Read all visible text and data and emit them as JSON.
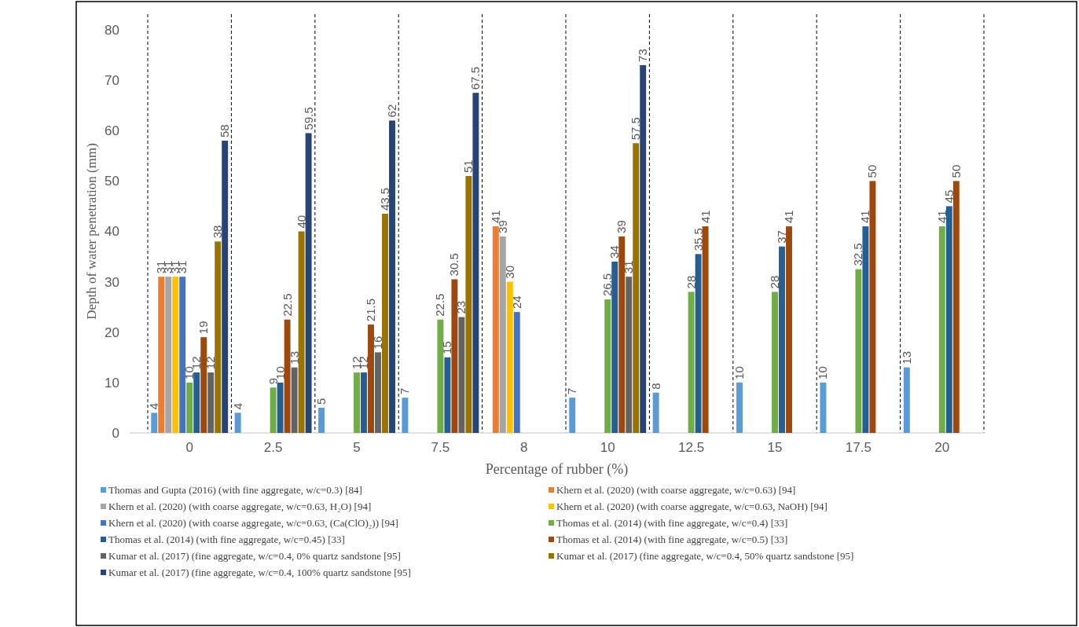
{
  "chart_data": {
    "type": "bar",
    "xlabel": "Percentage of rubber (%)",
    "ylabel": "Depth of water penetration (mm)",
    "categories": [
      "0",
      "2.5",
      "5",
      "7.5",
      "8",
      "10",
      "12.5",
      "15",
      "17.5",
      "20"
    ],
    "ylim": [
      0,
      80
    ],
    "yticks": [
      0,
      10,
      20,
      30,
      40,
      50,
      60,
      70,
      80
    ],
    "grid": "x",
    "legend": "bottom",
    "data_labels": true,
    "series": [
      {
        "name": "Thomas and Gupta (2016) (with fine aggregate, w/c=0.3) [84]",
        "color": "#5b9bd5",
        "values": [
          4,
          4,
          5,
          7,
          null,
          7,
          8,
          10,
          10,
          13
        ]
      },
      {
        "name": "Khern et al. (2020) (with coarse aggregate, w/c=0.63) [94]",
        "color": "#ed7d31",
        "values": [
          31,
          null,
          null,
          null,
          41,
          null,
          null,
          null,
          null,
          null
        ]
      },
      {
        "name": "Khern et al. (2020) (with coarse aggregate, w/c=0.63, H₂O) [94]",
        "color": "#a5a5a5",
        "values": [
          31,
          null,
          null,
          null,
          39,
          null,
          null,
          null,
          null,
          null
        ]
      },
      {
        "name": "Khern et al. (2020) (with coarse aggregate, w/c=0.63, NaOH) [94]",
        "color": "#ffc000",
        "values": [
          31,
          null,
          null,
          null,
          30,
          null,
          null,
          null,
          null,
          null
        ]
      },
      {
        "name": "Khern et al. (2020) (with coarse aggregate, w/c=0.63, (Ca(ClO)₂)) [94]",
        "color": "#4472c4",
        "values": [
          31,
          null,
          null,
          null,
          24,
          null,
          null,
          null,
          null,
          null
        ]
      },
      {
        "name": "Thomas et al. (2014) (with fine aggregate, w/c=0.4) [33]",
        "color": "#70ad47",
        "values": [
          10,
          9,
          12,
          22.5,
          null,
          26.5,
          28,
          28,
          32.5,
          41
        ]
      },
      {
        "name": "Thomas et al. (2014) (with fine aggregate, w/c=0.45) [33]",
        "color": "#255e91",
        "values": [
          12,
          10,
          12,
          15,
          null,
          34,
          35.5,
          37,
          41,
          45
        ]
      },
      {
        "name": "Thomas et al. (2014) (with fine aggregate, w/c=0.5) [33]",
        "color": "#9e480e",
        "values": [
          19,
          22.5,
          21.5,
          30.5,
          null,
          39,
          41,
          41,
          50,
          50
        ]
      },
      {
        "name": "Kumar et al. (2017) (fine aggregate, w/c=0.4, 0% quartz sandstone [95]",
        "color": "#636363",
        "values": [
          12,
          13,
          16,
          23,
          null,
          31,
          null,
          null,
          null,
          null
        ]
      },
      {
        "name": "Kumar et al. (2017) (fine aggregate, w/c=0.4, 50% quartz sandstone [95]",
        "color": "#997300",
        "values": [
          38,
          40,
          43.5,
          51,
          null,
          57.5,
          null,
          null,
          null,
          null
        ]
      },
      {
        "name": "Kumar et al. (2017) (fine aggregate, w/c=0.4, 100% quartz sandstone [95]",
        "color": "#264478",
        "values": [
          58,
          59.5,
          62,
          67.5,
          null,
          73,
          null,
          null,
          null,
          null
        ]
      }
    ]
  }
}
